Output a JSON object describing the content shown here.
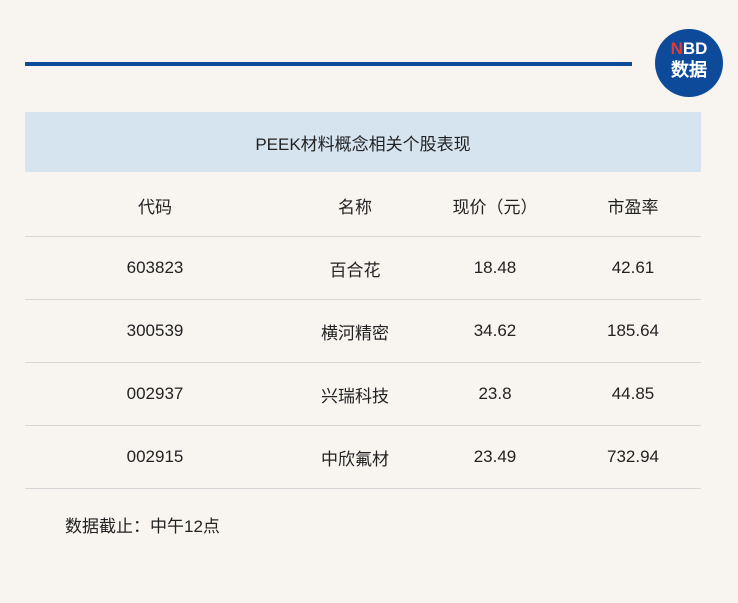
{
  "logo": {
    "top": "NBD",
    "bottom": "数据",
    "accent": "#e53935",
    "bg": "#0d4a9a"
  },
  "table": {
    "title": "PEEK材料概念相关个股表现",
    "headers": [
      "代码",
      "名称",
      "现价（元）",
      "市盈率"
    ],
    "rows": [
      [
        "603823",
        "百合花",
        "18.48",
        "42.61"
      ],
      [
        "300539",
        "横河精密",
        "34.62",
        "185.64"
      ],
      [
        "002937",
        "兴瑞科技",
        "23.8",
        "44.85"
      ],
      [
        "002915",
        "中欣氟材",
        "23.49",
        "732.94"
      ]
    ]
  },
  "note": "数据截止：中午12点"
}
